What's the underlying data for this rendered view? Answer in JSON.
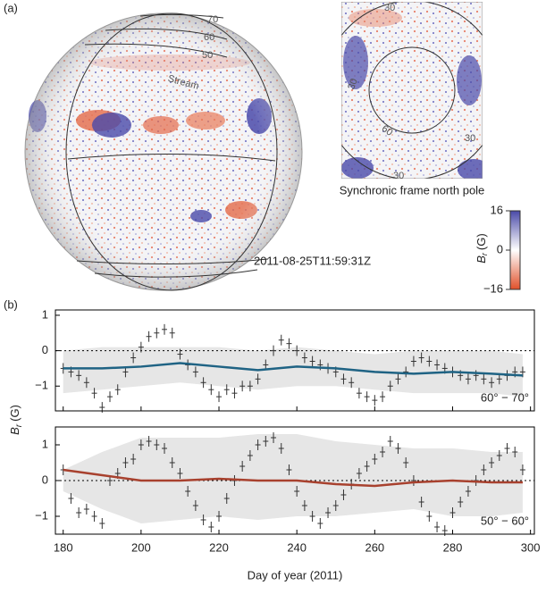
{
  "panel_a": {
    "label": "(a)",
    "lat_labels": [
      "70",
      "60",
      "50"
    ],
    "stream": "Stream",
    "pole_labels": [
      "30",
      "30",
      "30",
      "30",
      "60"
    ],
    "pole_caption": "Synchronic frame north pole",
    "timestamp": "2011-08-25T11:59:31Z",
    "colorbar": {
      "lim": [
        -16,
        16
      ],
      "ticks": [
        16,
        0,
        {
          "value": -16,
          "label": "−16"
        }
      ],
      "label_symbol": "B",
      "label_subscript": "r",
      "label_unit": "(G)"
    }
  },
  "chart_data": {
    "type": "errorbar",
    "panel_label": "(b)",
    "xlabel": "Day of year (2011)",
    "ylabel_symbol": "B",
    "ylabel_subscript": "r",
    "ylabel_unit": "(G)",
    "xlim": [
      178,
      301
    ],
    "xticks": [
      180,
      200,
      220,
      240,
      260,
      280,
      300
    ],
    "hline": 0,
    "x": [
      180,
      182,
      184,
      186,
      188,
      190,
      192,
      194,
      196,
      198,
      200,
      202,
      204,
      206,
      208,
      210,
      212,
      214,
      216,
      218,
      220,
      222,
      224,
      226,
      228,
      230,
      232,
      234,
      236,
      238,
      240,
      242,
      244,
      246,
      248,
      250,
      252,
      254,
      256,
      258,
      260,
      262,
      264,
      266,
      268,
      270,
      272,
      274,
      276,
      278,
      280,
      282,
      284,
      286,
      288,
      290,
      292,
      294,
      296,
      298
    ],
    "line_x": [
      180,
      190,
      200,
      210,
      220,
      230,
      240,
      250,
      260,
      270,
      280,
      290,
      298
    ],
    "panels": [
      {
        "annotation": "60° − 70°",
        "line_color": "#1f6384",
        "ylim": [
          -1.7,
          1.15
        ],
        "yticks": [
          {
            "value": -1,
            "label": "−1"
          },
          0,
          1
        ],
        "values": [
          -0.5,
          -0.6,
          -0.7,
          -0.9,
          -1.2,
          -1.6,
          -1.3,
          -1.1,
          -0.6,
          -0.2,
          0.1,
          0.4,
          0.5,
          0.6,
          0.5,
          -0.1,
          -0.4,
          -0.6,
          -0.9,
          -1.1,
          -1.3,
          -1.1,
          -1.2,
          -1.0,
          -1.0,
          -0.8,
          -0.4,
          0.0,
          0.3,
          0.2,
          0.0,
          -0.2,
          -0.3,
          -0.4,
          -0.5,
          -0.6,
          -0.8,
          -0.9,
          -1.2,
          -1.3,
          -1.4,
          -1.3,
          -1.0,
          -0.8,
          -0.6,
          -0.3,
          -0.2,
          -0.3,
          -0.4,
          -0.5,
          -0.6,
          -0.7,
          -0.8,
          -0.7,
          -0.8,
          -0.9,
          -0.8,
          -0.7,
          -0.6,
          -0.6
        ],
        "errors": [
          0.15,
          0.15,
          0.15,
          0.15,
          0.15,
          0.15,
          0.15,
          0.15,
          0.15,
          0.15,
          0.15,
          0.15,
          0.15,
          0.15,
          0.15,
          0.15,
          0.15,
          0.15,
          0.15,
          0.15,
          0.15,
          0.15,
          0.15,
          0.15,
          0.15,
          0.15,
          0.15,
          0.15,
          0.15,
          0.15,
          0.15,
          0.15,
          0.15,
          0.15,
          0.15,
          0.15,
          0.15,
          0.15,
          0.15,
          0.15,
          0.15,
          0.15,
          0.15,
          0.15,
          0.15,
          0.15,
          0.15,
          0.15,
          0.15,
          0.15,
          0.15,
          0.15,
          0.15,
          0.15,
          0.15,
          0.15,
          0.15,
          0.15,
          0.15,
          0.15
        ],
        "line": [
          -0.5,
          -0.5,
          -0.45,
          -0.35,
          -0.45,
          -0.55,
          -0.45,
          -0.5,
          -0.6,
          -0.65,
          -0.6,
          -0.65,
          -0.7
        ],
        "band_upper": [
          0.0,
          0.1,
          0.1,
          0.1,
          0.1,
          0.0,
          0.1,
          0.0,
          -0.1,
          0.0,
          0.0,
          0.0,
          -0.1
        ],
        "band_lower": [
          -1.2,
          -1.1,
          -1.0,
          -0.9,
          -1.0,
          -1.1,
          -1.0,
          -1.0,
          -1.1,
          -1.2,
          -1.2,
          -1.2,
          -1.3
        ]
      },
      {
        "annotation": "50° − 60°",
        "line_color": "#a8412e",
        "ylim": [
          -1.5,
          1.5
        ],
        "yticks": [
          {
            "value": -1,
            "label": "−1"
          },
          0,
          1
        ],
        "values": [
          0.3,
          -0.5,
          -0.9,
          -0.8,
          -1.0,
          -1.2,
          0.0,
          0.2,
          0.5,
          0.6,
          1.0,
          1.1,
          1.0,
          0.9,
          0.5,
          0.2,
          -0.3,
          -0.7,
          -1.1,
          -1.3,
          -1.0,
          -0.5,
          0.0,
          0.4,
          0.7,
          1.0,
          1.1,
          1.2,
          0.9,
          0.3,
          -0.3,
          -0.7,
          -1.0,
          -1.2,
          -0.9,
          -0.7,
          -0.4,
          -0.1,
          0.2,
          0.4,
          0.6,
          0.8,
          1.1,
          0.9,
          0.5,
          0.0,
          -0.6,
          -1.0,
          -1.3,
          -1.4,
          -0.9,
          -0.6,
          -0.3,
          0.0,
          0.3,
          0.5,
          0.7,
          0.9,
          0.8,
          0.3
        ],
        "errors": [
          0.15,
          0.15,
          0.15,
          0.15,
          0.15,
          0.15,
          0.15,
          0.15,
          0.15,
          0.15,
          0.15,
          0.15,
          0.15,
          0.15,
          0.15,
          0.15,
          0.15,
          0.15,
          0.15,
          0.15,
          0.15,
          0.15,
          0.15,
          0.15,
          0.15,
          0.15,
          0.15,
          0.15,
          0.15,
          0.15,
          0.15,
          0.15,
          0.15,
          0.15,
          0.15,
          0.15,
          0.15,
          0.15,
          0.15,
          0.15,
          0.15,
          0.15,
          0.15,
          0.15,
          0.15,
          0.15,
          0.15,
          0.15,
          0.15,
          0.15,
          0.15,
          0.15,
          0.15,
          0.15,
          0.15,
          0.15,
          0.15,
          0.15,
          0.15,
          0.15
        ],
        "line": [
          0.3,
          0.15,
          0.0,
          0.0,
          0.05,
          0.0,
          0.0,
          -0.1,
          -0.15,
          -0.05,
          0.0,
          -0.05,
          -0.05
        ],
        "band_upper": [
          0.3,
          0.8,
          1.2,
          1.2,
          1.2,
          1.3,
          1.3,
          1.1,
          1.0,
          0.9,
          0.9,
          0.8,
          0.8
        ],
        "band_lower": [
          -0.3,
          -0.8,
          -1.2,
          -1.1,
          -1.0,
          -1.1,
          -1.0,
          -1.0,
          -0.9,
          -0.8,
          -1.0,
          -1.0,
          -0.9
        ]
      }
    ]
  }
}
